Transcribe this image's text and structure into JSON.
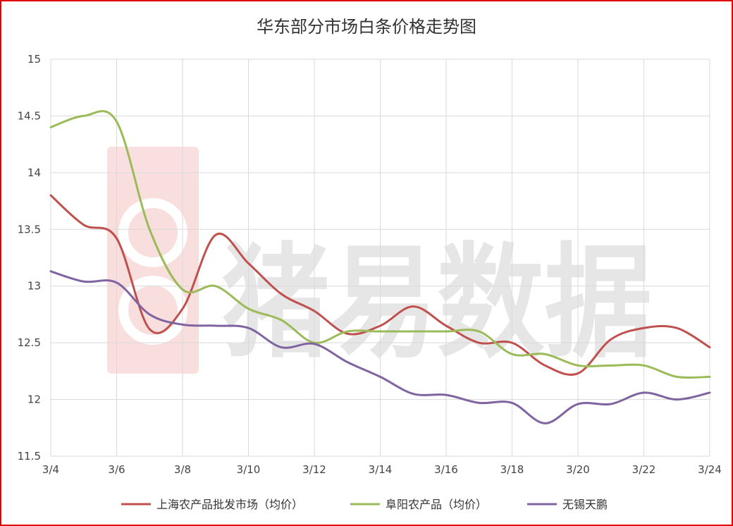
{
  "chart_data": {
    "type": "line",
    "title": "华东部分市场白条价格走势图",
    "x": [
      "3/4",
      "3/5",
      "3/6",
      "3/7",
      "3/8",
      "3/9",
      "3/10",
      "3/11",
      "3/12",
      "3/13",
      "3/14",
      "3/15",
      "3/16",
      "3/17",
      "3/18",
      "3/19",
      "3/20",
      "3/21",
      "3/22",
      "3/23",
      "3/24"
    ],
    "x_tick_labels": [
      "3/4",
      "3/6",
      "3/8",
      "3/10",
      "3/12",
      "3/14",
      "3/16",
      "3/18",
      "3/20",
      "3/22",
      "3/24"
    ],
    "ylim": [
      11.5,
      15
    ],
    "y_ticks": [
      11.5,
      12,
      12.5,
      13,
      13.5,
      14,
      14.5,
      15
    ],
    "grid": true,
    "legend_position": "bottom",
    "series": [
      {
        "name": "上海农产品批发市场（均价）",
        "color": "#c0504d",
        "values": [
          13.8,
          13.54,
          13.42,
          12.62,
          12.8,
          13.45,
          13.2,
          12.93,
          12.78,
          12.58,
          12.65,
          12.82,
          12.65,
          12.5,
          12.5,
          12.3,
          12.23,
          12.53,
          12.63,
          12.63,
          12.46
        ]
      },
      {
        "name": "阜阳农产品（均价）",
        "color": "#9bbb59",
        "values": [
          14.4,
          14.5,
          14.45,
          13.5,
          12.97,
          13.0,
          12.8,
          12.7,
          12.5,
          12.6,
          12.6,
          12.6,
          12.6,
          12.6,
          12.4,
          12.4,
          12.3,
          12.3,
          12.3,
          12.2,
          12.2
        ]
      },
      {
        "name": "无锡天鹏",
        "color": "#8064a2",
        "values": [
          13.13,
          13.04,
          13.03,
          12.75,
          12.66,
          12.65,
          12.63,
          12.46,
          12.49,
          12.33,
          12.2,
          12.05,
          12.04,
          11.97,
          11.97,
          11.79,
          11.96,
          11.96,
          12.06,
          12.0,
          12.06
        ]
      }
    ]
  },
  "watermark": {
    "text": "猪易数据",
    "icon": "pig-logo-icon"
  }
}
